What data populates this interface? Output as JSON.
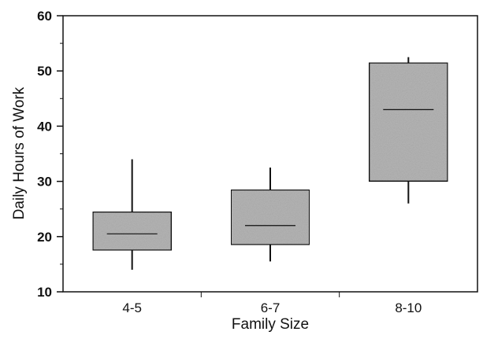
{
  "chart_data": {
    "type": "box",
    "xlabel": "Family Size",
    "ylabel": "Daily Hours of Work",
    "ylim": [
      10,
      60
    ],
    "yticks": [
      10,
      20,
      30,
      40,
      50,
      60
    ],
    "categories": [
      "4-5",
      "6-7",
      "8-10"
    ],
    "boxes": [
      {
        "category": "4-5",
        "whisker_low": 14,
        "q1": 17.5,
        "median": 20.5,
        "q3": 24.5,
        "whisker_high": 34
      },
      {
        "category": "6-7",
        "whisker_low": 15.5,
        "q1": 18.5,
        "median": 22,
        "q3": 28.5,
        "whisker_high": 32.5
      },
      {
        "category": "8-10",
        "whisker_low": 26,
        "q1": 30,
        "median": 43,
        "q3": 51.5,
        "whisker_high": 52.5
      }
    ],
    "grid": false,
    "legend": "none",
    "colors": {
      "box_fill": "#b5b5b5",
      "stroke": "#111111"
    }
  }
}
